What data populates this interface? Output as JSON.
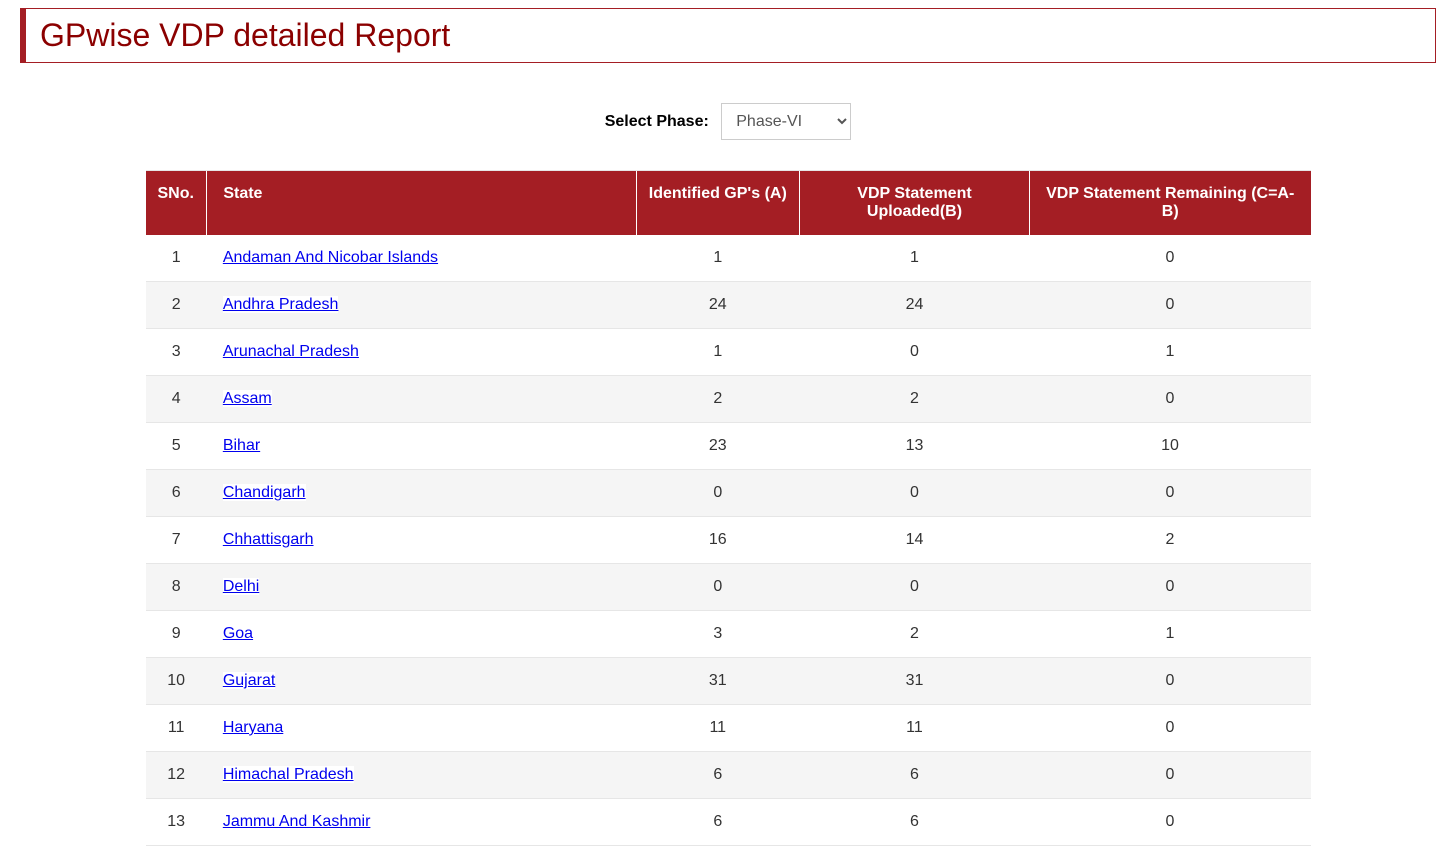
{
  "header": {
    "title": "GPwise VDP detailed Report"
  },
  "filter": {
    "label": "Select Phase:",
    "selected": "Phase-VI"
  },
  "table": {
    "columns": [
      "SNo.",
      "State",
      "Identified GP's (A)",
      "VDP Statement Uploaded(B)",
      "VDP Statement Remaining (C=A-B)"
    ],
    "rows": [
      {
        "sno": "1",
        "state": "Andaman And Nicobar Islands",
        "a": "1",
        "b": "1",
        "c": "0"
      },
      {
        "sno": "2",
        "state": "Andhra Pradesh",
        "a": "24",
        "b": "24",
        "c": "0"
      },
      {
        "sno": "3",
        "state": "Arunachal Pradesh",
        "a": "1",
        "b": "0",
        "c": "1"
      },
      {
        "sno": "4",
        "state": "Assam",
        "a": "2",
        "b": "2",
        "c": "0"
      },
      {
        "sno": "5",
        "state": "Bihar",
        "a": "23",
        "b": "13",
        "c": "10"
      },
      {
        "sno": "6",
        "state": "Chandigarh",
        "a": "0",
        "b": "0",
        "c": "0"
      },
      {
        "sno": "7",
        "state": "Chhattisgarh",
        "a": "16",
        "b": "14",
        "c": "2"
      },
      {
        "sno": "8",
        "state": "Delhi",
        "a": "0",
        "b": "0",
        "c": "0"
      },
      {
        "sno": "9",
        "state": "Goa",
        "a": "3",
        "b": "2",
        "c": "1"
      },
      {
        "sno": "10",
        "state": "Gujarat",
        "a": "31",
        "b": "31",
        "c": "0"
      },
      {
        "sno": "11",
        "state": "Haryana",
        "a": "11",
        "b": "11",
        "c": "0"
      },
      {
        "sno": "12",
        "state": "Himachal Pradesh",
        "a": "6",
        "b": "6",
        "c": "0"
      },
      {
        "sno": "13",
        "state": "Jammu And Kashmir",
        "a": "6",
        "b": "6",
        "c": "0"
      }
    ]
  },
  "colors": {
    "header_bg": "#a41e24",
    "header_text": "#ffffff",
    "title_color": "#8b0000",
    "link_color": "#0000ee",
    "row_alt_bg": "#f5f5f5",
    "border_color": "#e6e6e6"
  }
}
